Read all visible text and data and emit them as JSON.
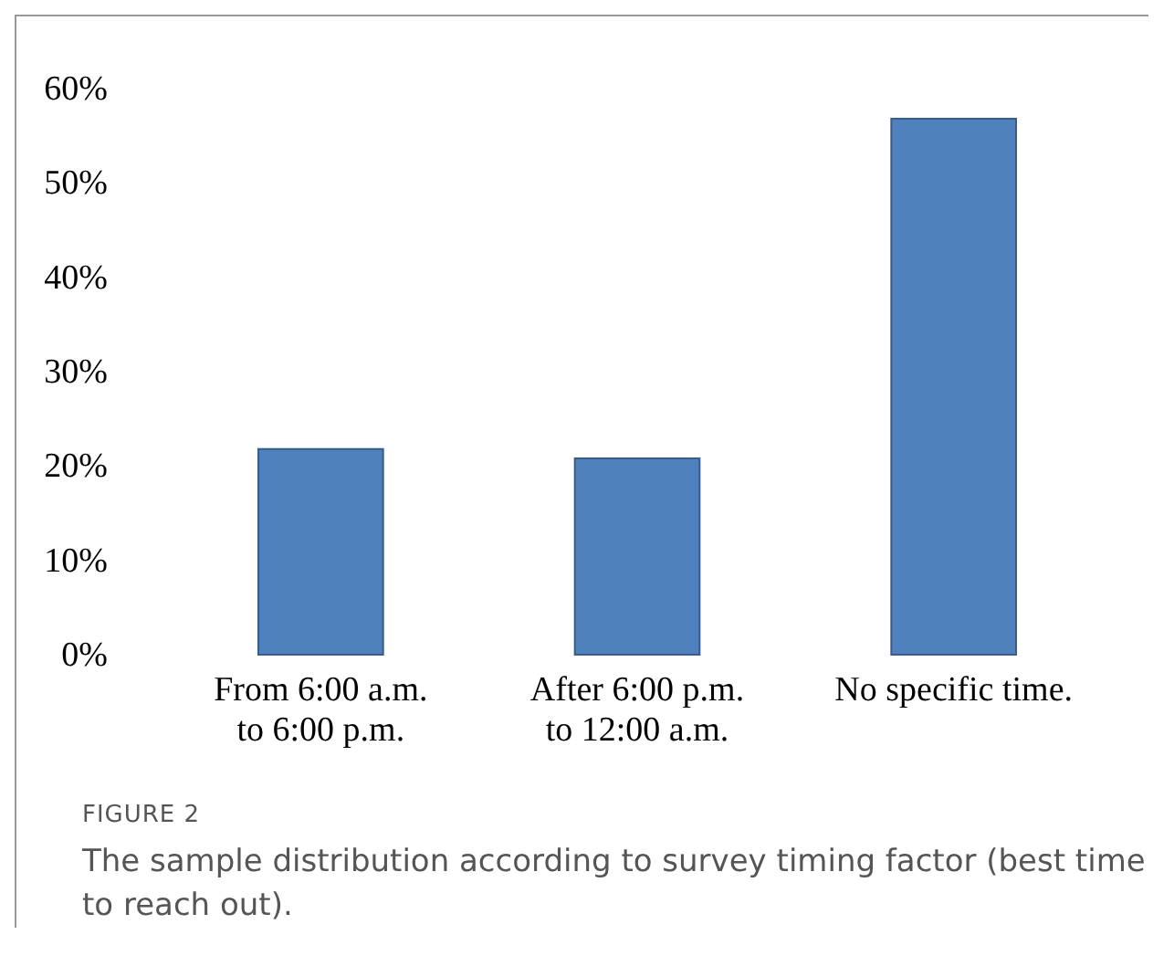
{
  "chart_data": {
    "type": "bar",
    "title": "FIGURE 2",
    "annotations": [
      "The sample distribution according to survey timing factor (best time to reach out)."
    ],
    "categories": [
      "From 6:00 a.m.\nto 6:00 p.m.",
      "After 6:00 p.m.\nto 12:00 a.m.",
      "No specific time."
    ],
    "values": [
      22,
      21,
      57
    ],
    "color": "#4f81bd",
    "ylim": [
      0,
      60
    ],
    "yticks": [
      {
        "value": 0,
        "label": "0%"
      },
      {
        "value": 10,
        "label": "10%"
      },
      {
        "value": 20,
        "label": "20%"
      },
      {
        "value": 30,
        "label": "30%"
      },
      {
        "value": 40,
        "label": "40%"
      },
      {
        "value": 50,
        "label": "50%"
      },
      {
        "value": 60,
        "label": "60%"
      }
    ],
    "grid": false
  }
}
